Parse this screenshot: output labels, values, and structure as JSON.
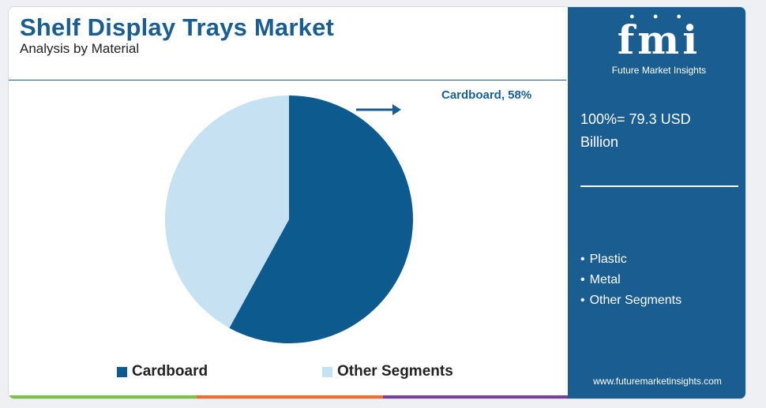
{
  "header": {
    "title": "Shelf Display Trays Market",
    "subtitle": "Analysis by Material"
  },
  "callout": {
    "label": "Cardboard, 58%"
  },
  "legend": {
    "items": [
      {
        "label": "Cardboard",
        "color": "#0d5a8e"
      },
      {
        "label": "Other Segments",
        "color": "#c6e1f2"
      }
    ]
  },
  "sidebar": {
    "logo_text": "fmi",
    "logo_subtext": "Future Market Insights",
    "total_line1": "100%= 79.3 USD",
    "total_line2": "Billion",
    "segments": [
      "Plastic",
      "Metal",
      "Other Segments"
    ],
    "website": "www.futuremarketinsights.com"
  },
  "colors": {
    "brand": "#1a5e91",
    "cardboard": "#0d5a8e",
    "other": "#c6e1f2",
    "bar_green": "#7cc243",
    "bar_orange": "#f26b2a",
    "bar_purple": "#7a3e9d",
    "bar_blue": "#1a5e91"
  },
  "chart_data": {
    "type": "pie",
    "title": "Shelf Display Trays Market",
    "subtitle": "Analysis by Material",
    "categories": [
      "Cardboard",
      "Other Segments"
    ],
    "values": [
      58,
      42
    ],
    "unit": "%",
    "total_label": "100%= 79.3 USD Billion",
    "legend_position": "bottom"
  }
}
